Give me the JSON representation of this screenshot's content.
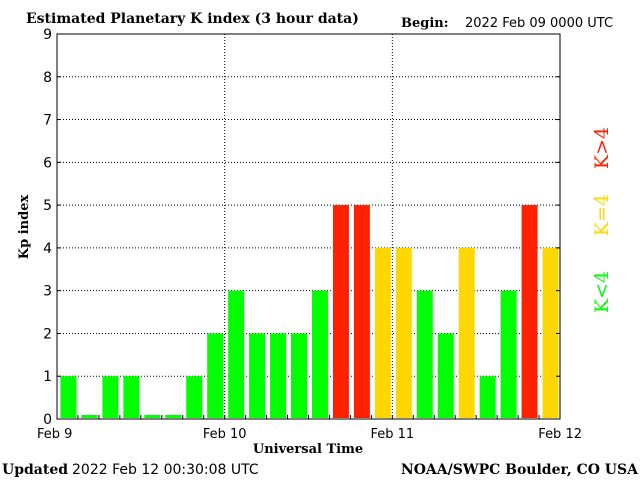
{
  "header": {
    "title": "Estimated Planetary K index (3 hour data)",
    "begin_label": "Begin:",
    "begin_value": "2022 Feb 09 0000 UTC"
  },
  "footer": {
    "updated_label": "Updated",
    "updated_value": "2022 Feb 12 00:30:08 UTC",
    "source": "NOAA/SWPC Boulder, CO USA"
  },
  "legend": {
    "green": "K<4",
    "yellow": "K=4",
    "red": "K>4"
  },
  "colors": {
    "green": "#00ff00",
    "yellow": "#ffd700",
    "red": "#ff2000",
    "frame": "#000000",
    "grid": "#000000"
  },
  "chart_data": {
    "type": "bar",
    "title": "Estimated Planetary K index (3 hour data)",
    "xlabel": "Universal Time",
    "ylabel": "Kp index",
    "ylim": [
      0,
      9
    ],
    "yticks": [
      "0",
      "1",
      "2",
      "3",
      "4",
      "5",
      "6",
      "7",
      "8",
      "9"
    ],
    "xticks": [
      "Feb 9",
      "Feb 10",
      "Feb 11",
      "Feb 12"
    ],
    "grid": "dotted",
    "bar_interval_hours": 3,
    "values": [
      1,
      0,
      1,
      1,
      0,
      0,
      1,
      2,
      3,
      2,
      2,
      2,
      3,
      5,
      5,
      4,
      4,
      3,
      2,
      4,
      1,
      3,
      5,
      4
    ]
  }
}
